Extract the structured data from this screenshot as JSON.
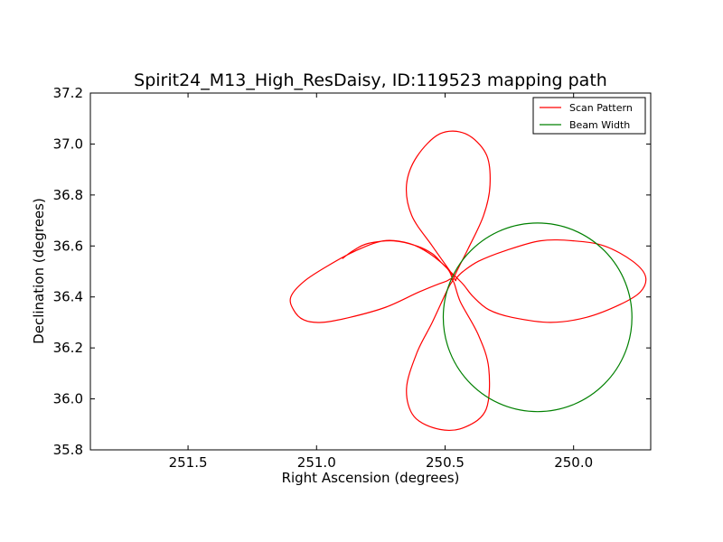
{
  "chart_data": {
    "type": "line",
    "title": "Spirit24_M13_High_ResDaisy, ID:119523 mapping path",
    "xlabel": "Right Ascension (degrees)",
    "ylabel": "Declination (degrees)",
    "xlim": [
      251.88,
      249.7
    ],
    "ylim": [
      35.8,
      37.2
    ],
    "x_inverted": true,
    "xticks": [
      251.5,
      251.0,
      250.5,
      250.0
    ],
    "xtick_labels": [
      "251.5",
      "251.0",
      "250.5",
      "250.0"
    ],
    "yticks": [
      35.8,
      36.0,
      36.2,
      36.4,
      36.6,
      36.8,
      37.0,
      37.2
    ],
    "ytick_labels": [
      "35.8",
      "36.0",
      "36.2",
      "36.4",
      "36.6",
      "36.8",
      "37.0",
      "37.2"
    ],
    "grid": false,
    "legend_position": "top-right",
    "series": [
      {
        "name": "Scan Pattern",
        "color": "#ff0000",
        "x": [
          250.9,
          250.86,
          250.8,
          250.7,
          250.61,
          250.55,
          250.51,
          250.47,
          250.43,
          250.39,
          250.33,
          250.24,
          250.09,
          249.95,
          249.82,
          249.74,
          249.72,
          249.77,
          249.88,
          250.0,
          250.13,
          250.27,
          250.37,
          250.43,
          250.455,
          250.46,
          250.48,
          250.55,
          250.63,
          250.65,
          250.61,
          250.52,
          250.42,
          250.34,
          250.325,
          250.35,
          250.41,
          250.455,
          250.47,
          250.49,
          250.55,
          250.61,
          250.65,
          250.62,
          250.52,
          250.42,
          250.34,
          250.33,
          250.37,
          250.44,
          250.47,
          250.5,
          250.6,
          250.73,
          250.87,
          250.98,
          251.05,
          251.09,
          251.1,
          251.05,
          250.96,
          250.85,
          250.74,
          250.64,
          250.56,
          250.49,
          250.47
        ],
        "y": [
          36.55,
          36.58,
          36.61,
          36.62,
          36.6,
          36.57,
          36.53,
          36.49,
          36.45,
          36.4,
          36.35,
          36.32,
          36.3,
          36.32,
          36.37,
          36.42,
          36.48,
          36.54,
          36.6,
          36.62,
          36.62,
          36.58,
          36.54,
          36.5,
          36.475,
          36.465,
          36.5,
          36.6,
          36.72,
          36.84,
          36.95,
          37.04,
          37.04,
          36.96,
          36.84,
          36.72,
          36.59,
          36.5,
          36.465,
          36.43,
          36.3,
          36.18,
          36.04,
          35.93,
          35.88,
          35.89,
          35.96,
          36.12,
          36.25,
          36.38,
          36.465,
          36.46,
          36.42,
          36.36,
          36.32,
          36.3,
          36.31,
          36.35,
          36.4,
          36.46,
          36.52,
          36.58,
          36.62,
          36.61,
          36.57,
          36.51,
          36.465
        ]
      },
      {
        "name": "Beam Width",
        "color": "#008000",
        "shape": "circle",
        "center": [
          250.14,
          36.32
        ],
        "radius_dec": 0.37
      }
    ]
  }
}
